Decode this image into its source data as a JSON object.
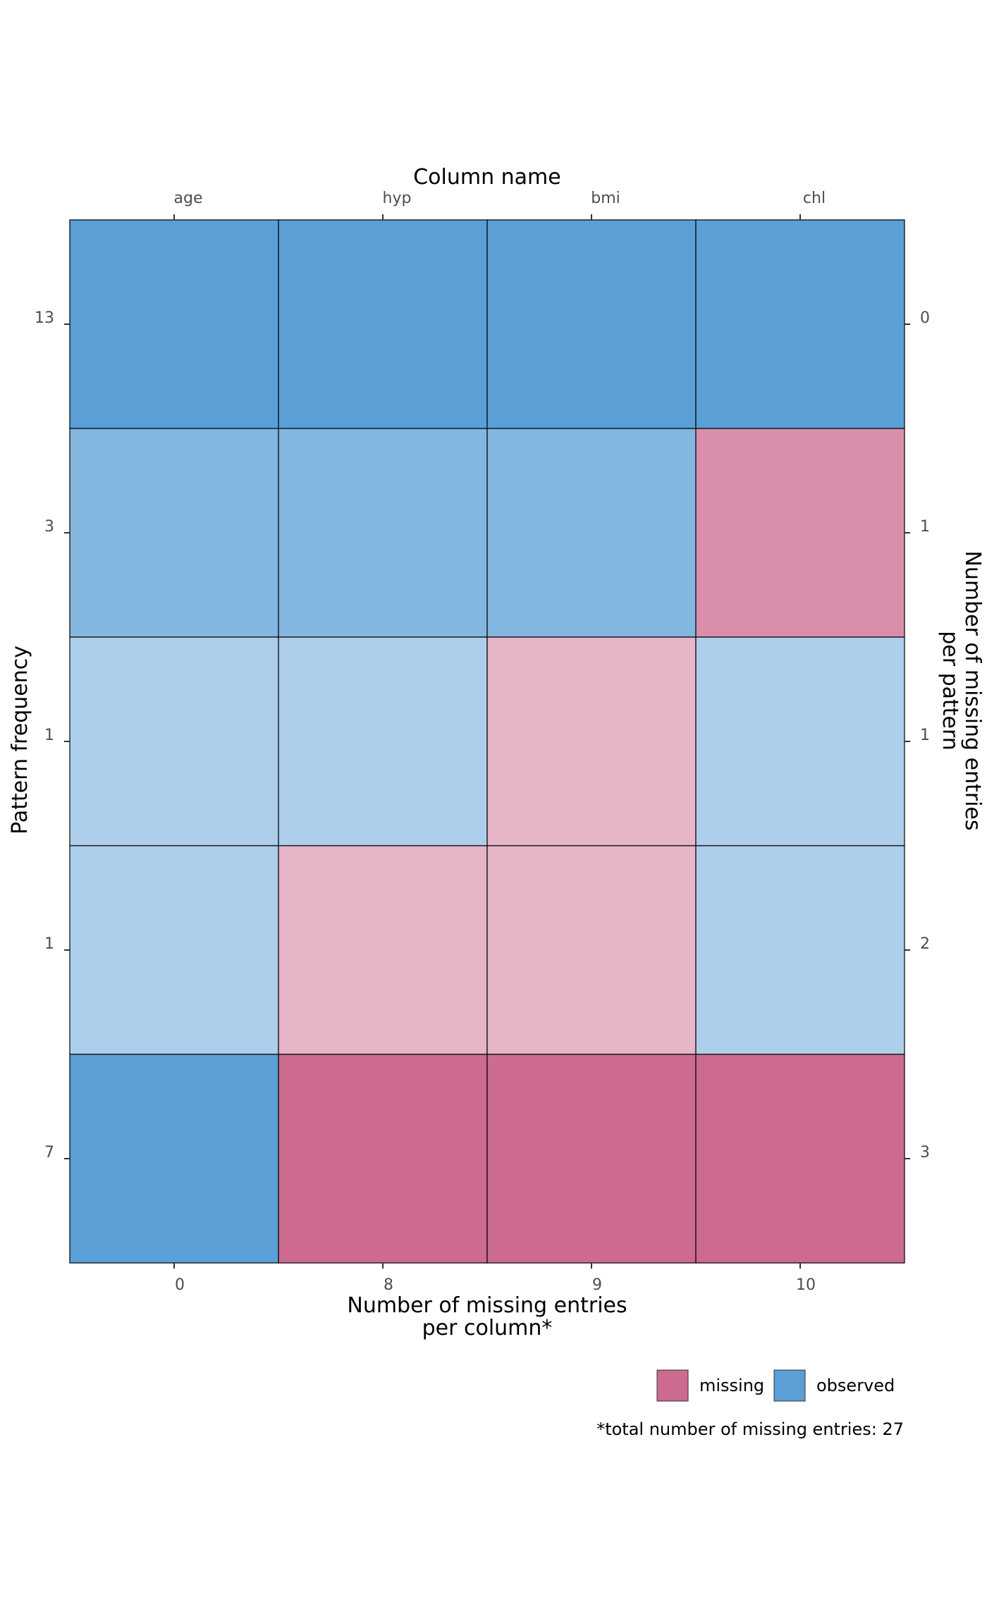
{
  "chart_data": {
    "type": "heatmap",
    "title": "",
    "top_axis_title": "Column name",
    "bottom_axis_title": [
      "Number of missing entries",
      "per column*"
    ],
    "left_axis_title": "Pattern frequency",
    "right_axis_title": [
      "Number of missing entries",
      "per pattern"
    ],
    "columns": [
      "age",
      "hyp",
      "bmi",
      "chl"
    ],
    "missing_per_column": [
      "0",
      "8",
      "9",
      "10"
    ],
    "rows": [
      {
        "frequency": "13",
        "missing_per_pattern": "0",
        "cells": [
          "observed",
          "observed",
          "observed",
          "observed"
        ]
      },
      {
        "frequency": "3",
        "missing_per_pattern": "1",
        "cells": [
          "observed",
          "observed",
          "observed",
          "missing"
        ]
      },
      {
        "frequency": "1",
        "missing_per_pattern": "1",
        "cells": [
          "observed",
          "observed",
          "missing",
          "observed"
        ]
      },
      {
        "frequency": "1",
        "missing_per_pattern": "2",
        "cells": [
          "observed",
          "missing",
          "missing",
          "observed"
        ]
      },
      {
        "frequency": "7",
        "missing_per_pattern": "3",
        "cells": [
          "observed",
          "missing",
          "missing",
          "missing"
        ]
      }
    ],
    "row_shading_alpha": [
      1.0,
      0.75,
      0.5,
      0.5,
      1.0
    ],
    "legend": {
      "position": "bottom-right",
      "items": [
        {
          "label": "missing",
          "color": "#cc6a8f"
        },
        {
          "label": "observed",
          "color": "#5a9fd6"
        }
      ]
    },
    "caption": "*total number of missing entries: 27",
    "colors": {
      "missing": "#cc6a8f",
      "observed": "#5a9fd6",
      "background": "#ffffff"
    },
    "grid": false
  }
}
